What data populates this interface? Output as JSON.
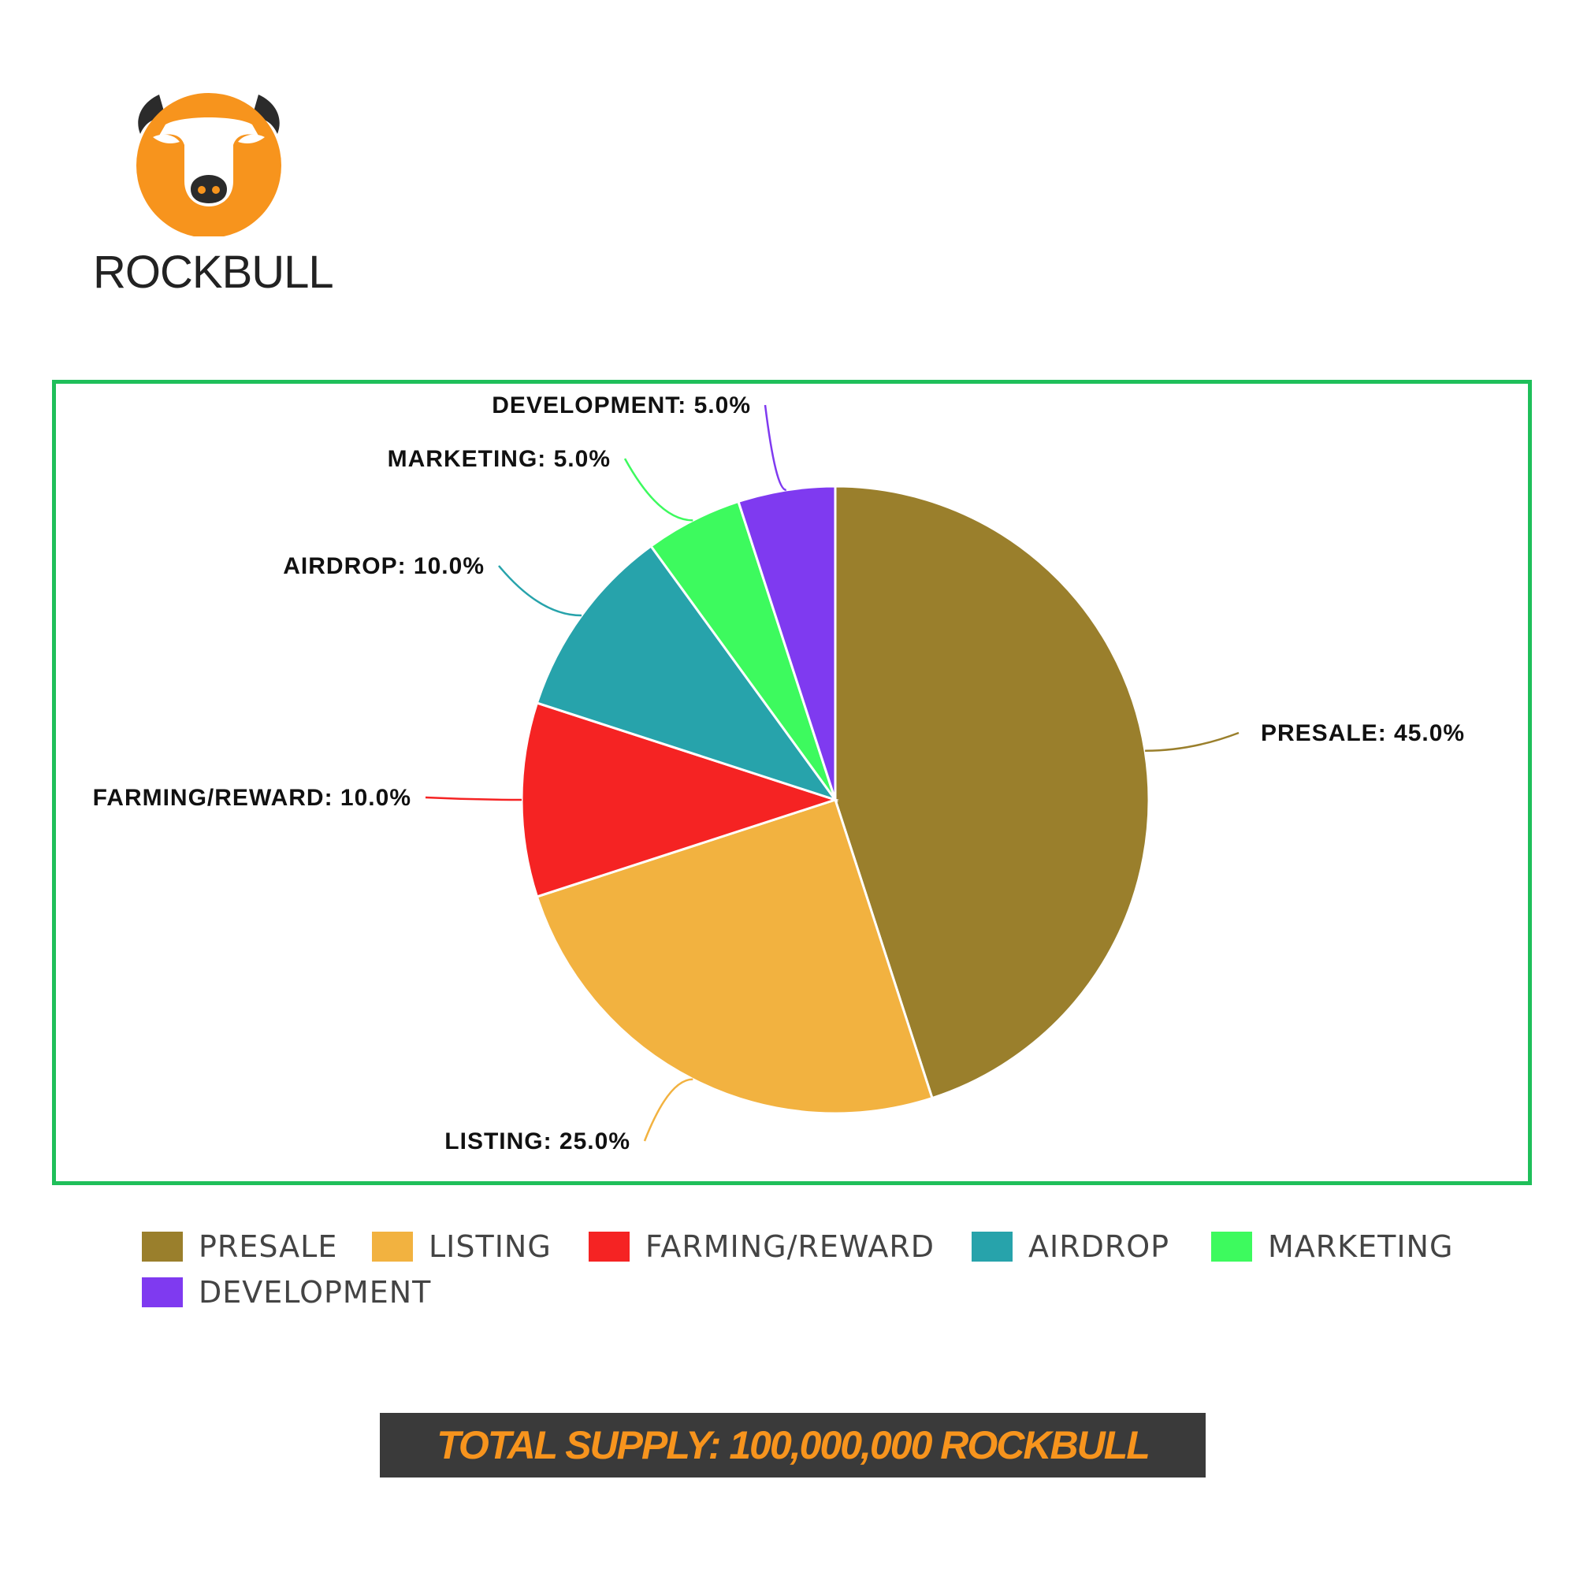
{
  "brand": {
    "name": "ROCKBULL",
    "logo_icon": "bull-head-icon",
    "logo_color": "#f7941d"
  },
  "chart_data": {
    "type": "pie",
    "slices": [
      {
        "name": "PRESALE",
        "value": 45.0,
        "label": "PRESALE: 45.0%",
        "color": "#9a7f2c"
      },
      {
        "name": "LISTING",
        "value": 25.0,
        "label": "LISTING: 25.0%",
        "color": "#f2b240"
      },
      {
        "name": "FARMING/REWARD",
        "value": 10.0,
        "label": "FARMING/REWARD: 10.0%",
        "color": "#f52323"
      },
      {
        "name": "AIRDROP",
        "value": 10.0,
        "label": "AIRDROP: 10.0%",
        "color": "#27a3ab"
      },
      {
        "name": "MARKETING",
        "value": 5.0,
        "label": "MARKETING: 5.0%",
        "color": "#3dfa5e"
      },
      {
        "name": "DEVELOPMENT",
        "value": 5.0,
        "label": "DEVELOPMENT: 5.0%",
        "color": "#7f3af0"
      }
    ],
    "legend_position": "bottom",
    "frame_color": "#1fbf5a"
  },
  "footer": {
    "total_supply": "TOTAL SUPPLY: 100,000,000 ROCKBULL"
  }
}
